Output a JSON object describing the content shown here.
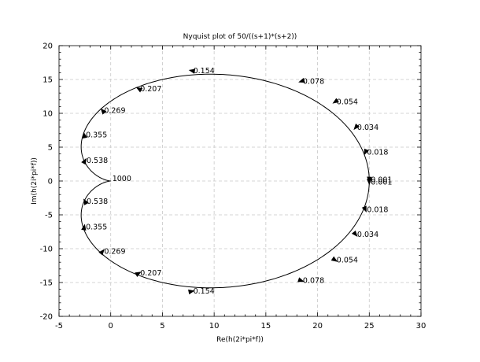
{
  "chart_data": {
    "type": "line",
    "title": "Nyquist plot of 50/((s+1)*(s+2))",
    "xlabel": "Re(h(2i*pi*f))",
    "ylabel": "Im(h(2i*pi*f))",
    "xlim": [
      -5,
      30
    ],
    "ylim": [
      -20,
      20
    ],
    "xticks": [
      -5,
      0,
      5,
      10,
      15,
      20,
      25,
      30
    ],
    "yticks": [
      -20,
      -15,
      -10,
      -5,
      0,
      5,
      10,
      15,
      20
    ],
    "grid": true,
    "transfer_function": {
      "gain": 50,
      "poles": [
        -1,
        -2
      ]
    },
    "frequency_range": [
      0.001,
      1000
    ],
    "annotations": [
      {
        "text": "0.001",
        "x": 25.0,
        "y": 0.16
      },
      {
        "text": "0.001",
        "x": 25.0,
        "y": -0.16
      },
      {
        "text": "0.018",
        "x": 24.62,
        "y": 4.22
      },
      {
        "text": "0.018",
        "x": 24.62,
        "y": -4.22
      },
      {
        "text": "0.034",
        "x": 23.68,
        "y": 7.9
      },
      {
        "text": "0.034",
        "x": 23.68,
        "y": -7.9
      },
      {
        "text": "0.054",
        "x": 21.69,
        "y": 11.69
      },
      {
        "text": "0.054",
        "x": 21.69,
        "y": -11.69
      },
      {
        "text": "0.078",
        "x": 18.43,
        "y": 14.73
      },
      {
        "text": "0.078",
        "x": 18.43,
        "y": -14.73
      },
      {
        "text": "0.154",
        "x": 7.83,
        "y": 16.3
      },
      {
        "text": "0.154",
        "x": 7.83,
        "y": -16.3
      },
      {
        "text": "0.207",
        "x": 2.7,
        "y": 13.63
      },
      {
        "text": "0.207",
        "x": 2.7,
        "y": -13.63
      },
      {
        "text": "0.269",
        "x": -0.79,
        "y": 10.4
      },
      {
        "text": "0.269",
        "x": -0.79,
        "y": -10.4
      },
      {
        "text": "0.355",
        "x": -2.56,
        "y": 6.8
      },
      {
        "text": "0.355",
        "x": -2.56,
        "y": -6.8
      },
      {
        "text": "0.538",
        "x": -2.49,
        "y": 3.0
      },
      {
        "text": "0.538",
        "x": -2.49,
        "y": -3.0
      },
      {
        "text": "1000",
        "x": 0.0,
        "y": 0.0
      }
    ]
  }
}
